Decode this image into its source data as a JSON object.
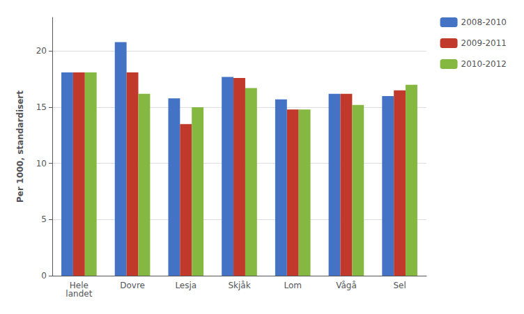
{
  "chart_data": {
    "type": "bar",
    "categories": [
      "Hele\nlandet",
      "Dovre",
      "Lesja",
      "Skjåk",
      "Lom",
      "Vågå",
      "Sel"
    ],
    "series": [
      {
        "name": "2008-2010",
        "color": "#4472C4",
        "values": [
          18.1,
          20.8,
          15.8,
          17.7,
          15.7,
          16.2,
          16.0
        ]
      },
      {
        "name": "2009-2011",
        "color": "#C0392B",
        "values": [
          18.1,
          18.1,
          13.5,
          17.6,
          14.8,
          16.2,
          16.5
        ]
      },
      {
        "name": "2010-2012",
        "color": "#84B840",
        "values": [
          18.1,
          16.2,
          15.0,
          16.7,
          14.8,
          15.2,
          17.0
        ]
      }
    ],
    "ylabel": "Per 1000, standardisert",
    "ylim": [
      0,
      23
    ],
    "yticks": [
      0,
      5,
      10,
      15,
      20
    ],
    "grid": true,
    "legend": "upper right"
  }
}
